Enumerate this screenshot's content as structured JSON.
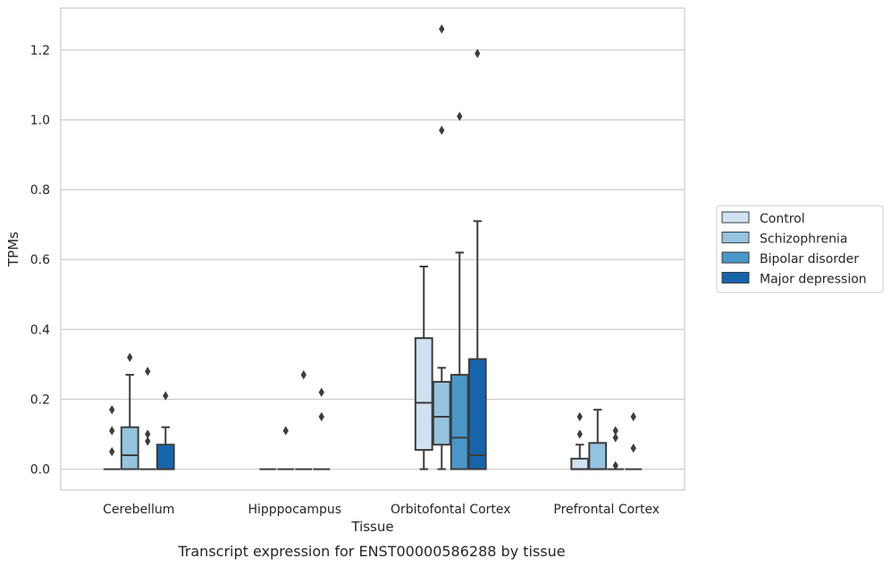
{
  "chart_data": {
    "type": "box",
    "xlabel": "Tissue",
    "ylabel": "TPMs",
    "caption": "Transcript expression for ENST00000586288 by tissue",
    "ylim": [
      -0.06,
      1.32
    ],
    "yticks": [
      0.0,
      0.2,
      0.4,
      0.6,
      0.8,
      1.0,
      1.2
    ],
    "ytick_labels": [
      "0.0",
      "0.2",
      "0.4",
      "0.6",
      "0.8",
      "1.0",
      "1.2"
    ],
    "grid": "horizontal",
    "legend_position": "right",
    "categories": [
      "Cerebellum",
      "Hipppocampus",
      "Orbitofontal Cortex",
      "Prefrontal Cortex"
    ],
    "series": [
      {
        "name": "Control",
        "color": "#d0e1f2",
        "boxes": [
          {
            "q1": 0.0,
            "median": 0.0,
            "q3": 0.0,
            "whislo": 0.0,
            "whishi": 0.0,
            "fliers": [
              0.17,
              0.11,
              0.05
            ]
          },
          {
            "q1": 0.0,
            "median": 0.0,
            "q3": 0.0,
            "whislo": 0.0,
            "whishi": 0.0,
            "fliers": []
          },
          {
            "q1": 0.055,
            "median": 0.19,
            "q3": 0.375,
            "whislo": 0.0,
            "whishi": 0.58,
            "fliers": []
          },
          {
            "q1": 0.0,
            "median": 0.0,
            "q3": 0.03,
            "whislo": 0.0,
            "whishi": 0.07,
            "fliers": [
              0.15,
              0.1
            ]
          }
        ]
      },
      {
        "name": "Schizophrenia",
        "color": "#94c4df",
        "boxes": [
          {
            "q1": 0.0,
            "median": 0.04,
            "q3": 0.12,
            "whislo": 0.0,
            "whishi": 0.27,
            "fliers": [
              0.32
            ]
          },
          {
            "q1": 0.0,
            "median": 0.0,
            "q3": 0.0,
            "whislo": 0.0,
            "whishi": 0.0,
            "fliers": [
              0.11
            ]
          },
          {
            "q1": 0.07,
            "median": 0.15,
            "q3": 0.25,
            "whislo": 0.0,
            "whishi": 0.29,
            "fliers": [
              1.26,
              0.97
            ]
          },
          {
            "q1": 0.0,
            "median": 0.0,
            "q3": 0.075,
            "whislo": 0.0,
            "whishi": 0.17,
            "fliers": []
          }
        ]
      },
      {
        "name": "Bipolar disorder",
        "color": "#4a98c9",
        "boxes": [
          {
            "q1": 0.0,
            "median": 0.0,
            "q3": 0.0,
            "whislo": 0.0,
            "whishi": 0.0,
            "fliers": [
              0.28,
              0.1,
              0.08
            ]
          },
          {
            "q1": 0.0,
            "median": 0.0,
            "q3": 0.0,
            "whislo": 0.0,
            "whishi": 0.0,
            "fliers": [
              0.27
            ]
          },
          {
            "q1": 0.0,
            "median": 0.09,
            "q3": 0.27,
            "whislo": 0.0,
            "whishi": 0.62,
            "fliers": [
              1.01
            ]
          },
          {
            "q1": 0.0,
            "median": 0.0,
            "q3": 0.0,
            "whislo": 0.0,
            "whishi": 0.0,
            "fliers": [
              0.11,
              0.09,
              0.01
            ]
          }
        ]
      },
      {
        "name": "Major depression",
        "color": "#1764ab",
        "boxes": [
          {
            "q1": 0.0,
            "median": 0.0,
            "q3": 0.07,
            "whislo": 0.0,
            "whishi": 0.12,
            "fliers": [
              0.21
            ]
          },
          {
            "q1": 0.0,
            "median": 0.0,
            "q3": 0.0,
            "whislo": 0.0,
            "whishi": 0.0,
            "fliers": [
              0.22,
              0.15
            ]
          },
          {
            "q1": 0.0,
            "median": 0.04,
            "q3": 0.315,
            "whislo": 0.0,
            "whishi": 0.71,
            "fliers": [
              1.19
            ]
          },
          {
            "q1": 0.0,
            "median": 0.0,
            "q3": 0.0,
            "whislo": 0.0,
            "whishi": 0.0,
            "fliers": [
              0.15,
              0.06
            ]
          }
        ]
      }
    ]
  }
}
